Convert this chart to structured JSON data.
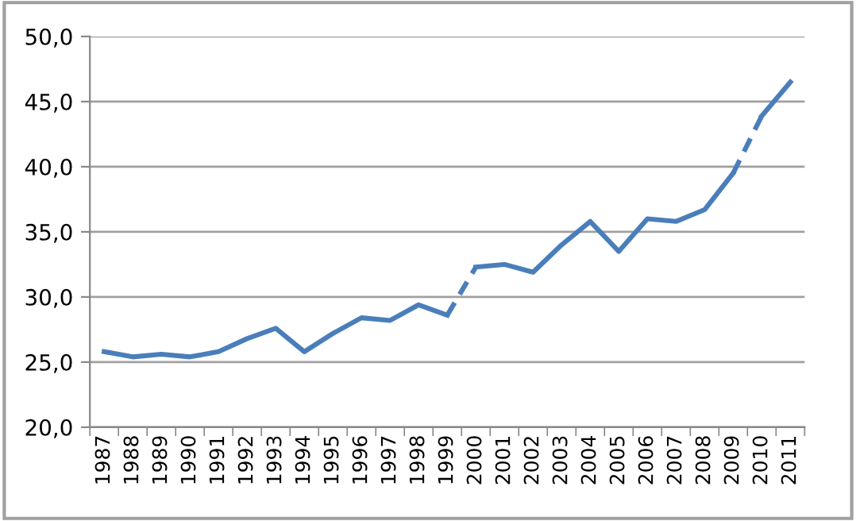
{
  "chart_data": {
    "type": "line",
    "categories": [
      "1987",
      "1988",
      "1989",
      "1990",
      "1991",
      "1992",
      "1993",
      "1994",
      "1995",
      "1996",
      "1997",
      "1998",
      "1999",
      "2000",
      "2001",
      "2002",
      "2003",
      "2004",
      "2005",
      "2006",
      "2007",
      "2008",
      "2009",
      "2010",
      "2011"
    ],
    "series": [
      {
        "color": "#4a7ebb",
        "line_style": "solid",
        "values": [
          25.8,
          25.4,
          25.6,
          25.4,
          25.8,
          26.8,
          27.6,
          25.8,
          27.2,
          28.4,
          28.2,
          29.4,
          28.6,
          null,
          null,
          null,
          null,
          null,
          null,
          null,
          null,
          null,
          null,
          43.9,
          46.5
        ]
      },
      {
        "color": "#4a7ebb",
        "line_style": "solid",
        "values": [
          null,
          null,
          null,
          null,
          null,
          null,
          null,
          null,
          null,
          null,
          null,
          null,
          null,
          32.3,
          32.5,
          31.9,
          34.0,
          35.8,
          33.5,
          36.0,
          35.8,
          36.7,
          39.5,
          null,
          null
        ]
      },
      {
        "color": "#4a7ebb",
        "line_style": "dashed",
        "values": [
          null,
          null,
          null,
          null,
          null,
          null,
          null,
          null,
          null,
          null,
          null,
          null,
          28.6,
          32.3,
          null,
          null,
          null,
          null,
          null,
          null,
          null,
          null,
          39.5,
          43.9,
          null
        ]
      }
    ],
    "ylim": [
      20,
      50
    ],
    "yticks": [
      {
        "value": 20,
        "label": "20,0"
      },
      {
        "value": 25,
        "label": "25,0"
      },
      {
        "value": 30,
        "label": "30,0"
      },
      {
        "value": 35,
        "label": "35,0"
      },
      {
        "value": 40,
        "label": "40,0"
      },
      {
        "value": 45,
        "label": "45,0"
      },
      {
        "value": 50,
        "label": "50,0"
      }
    ],
    "grid": "y",
    "marker": "none"
  }
}
